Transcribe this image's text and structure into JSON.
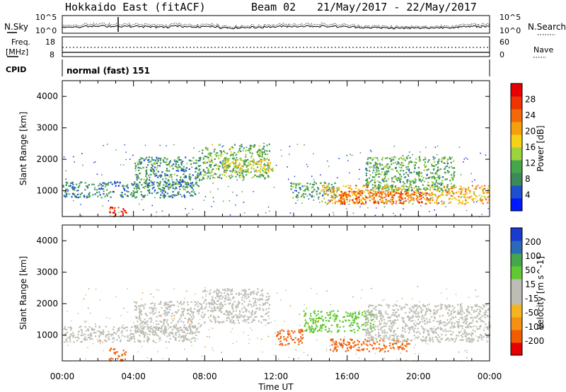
{
  "header": {
    "station": "Hokkaido East (fitACF)",
    "beam": "Beam 02",
    "dates": "21/May/2017 - 22/May/2017"
  },
  "top_panels": {
    "nsky_label": "N.Sky",
    "nsky_ticks": [
      "10^5",
      "10^0"
    ],
    "nsearch_label": "N.Search",
    "nsearch_ticks": [
      "10^5",
      "10^0"
    ],
    "freq_label": "Freq.",
    "freq_unit": "[MHz]",
    "freq_ticks": [
      "18",
      "8"
    ],
    "nave_label": "Nave",
    "nave_ticks": [
      "60",
      "0"
    ],
    "cpid_label": "CPID",
    "cpid_value": "normal (fast) 151"
  },
  "colors": {
    "power_scale": [
      "#0018ff",
      "#1f4fd0",
      "#3a8a5a",
      "#46a64c",
      "#9cd23c",
      "#f5d218",
      "#f5a00c",
      "#f26a08",
      "#ef3404",
      "#e60000"
    ],
    "velocity_scale": [
      "#e60000",
      "#f25c00",
      "#f59010",
      "#f5b520",
      "#bdbdb5",
      "#bdbdb5",
      "#60c830",
      "#46a64c",
      "#2a6ab8",
      "#1a3ad0"
    ],
    "ground_scatter": "#bdbdb5"
  },
  "chart_data": [
    {
      "type": "heatmap",
      "panel": "power",
      "xlabel": "Time UT",
      "ylabel": "Slant Range [km]",
      "xlim": [
        0,
        24
      ],
      "ylim": [
        180,
        4500
      ],
      "x_ticks": [
        "00:00",
        "04:00",
        "08:00",
        "12:00",
        "16:00",
        "20:00",
        "00:00"
      ],
      "y_ticks": [
        "1000",
        "2000",
        "3000",
        "4000"
      ],
      "colorbar_label": "Power [dB]",
      "colorbar_ticks": [
        "4",
        "8",
        "12",
        "16",
        "20",
        "24",
        "28"
      ],
      "regions": [
        {
          "t0": 0.0,
          "t1": 7.5,
          "r0": 800,
          "r1": 1300,
          "value": 8
        },
        {
          "t0": 2.6,
          "t1": 3.6,
          "r0": 200,
          "r1": 500,
          "value": 28
        },
        {
          "t0": 4.0,
          "t1": 7.8,
          "r0": 1100,
          "r1": 2100,
          "value": 9
        },
        {
          "t0": 7.8,
          "t1": 11.6,
          "r0": 1400,
          "r1": 2500,
          "value": 12
        },
        {
          "t0": 9.0,
          "t1": 11.8,
          "r0": 1600,
          "r1": 2000,
          "value": 17
        },
        {
          "t0": 12.8,
          "t1": 15.5,
          "r0": 800,
          "r1": 1300,
          "value": 10
        },
        {
          "t0": 14.5,
          "t1": 24.0,
          "r0": 600,
          "r1": 1200,
          "value": 20
        },
        {
          "t0": 15.5,
          "t1": 20.5,
          "r0": 600,
          "r1": 1000,
          "value": 25
        },
        {
          "t0": 17.0,
          "t1": 22.0,
          "r0": 1000,
          "r1": 2100,
          "value": 11
        }
      ]
    },
    {
      "type": "heatmap",
      "panel": "velocity",
      "xlabel": "Time UT",
      "ylabel": "Slant Range [km]",
      "xlim": [
        0,
        24
      ],
      "ylim": [
        180,
        4500
      ],
      "x_ticks": [
        "00:00",
        "04:00",
        "08:00",
        "12:00",
        "16:00",
        "20:00",
        "00:00"
      ],
      "y_ticks": [
        "1000",
        "2000",
        "3000",
        "4000"
      ],
      "colorbar_label": "Velocity [m s^-1]",
      "colorbar_ticks": [
        "200",
        "100",
        "50",
        "15",
        "-15",
        "-50",
        "-100",
        "-200"
      ],
      "regions": [
        {
          "t0": 0.0,
          "t1": 7.5,
          "r0": 800,
          "r1": 1300,
          "value": 0
        },
        {
          "t0": 2.6,
          "t1": 3.6,
          "r0": 200,
          "r1": 600,
          "value": -60
        },
        {
          "t0": 4.0,
          "t1": 7.8,
          "r0": 1100,
          "r1": 2100,
          "value": 0
        },
        {
          "t0": 7.8,
          "t1": 11.6,
          "r0": 1400,
          "r1": 2500,
          "value": 0
        },
        {
          "t0": 12.0,
          "t1": 13.5,
          "r0": 700,
          "r1": 1200,
          "value": -60
        },
        {
          "t0": 13.5,
          "t1": 17.5,
          "r0": 1100,
          "r1": 1800,
          "value": 30
        },
        {
          "t0": 15.0,
          "t1": 19.5,
          "r0": 500,
          "r1": 900,
          "value": -60
        },
        {
          "t0": 17.0,
          "t1": 24.0,
          "r0": 800,
          "r1": 2000,
          "value": 0
        }
      ]
    }
  ]
}
